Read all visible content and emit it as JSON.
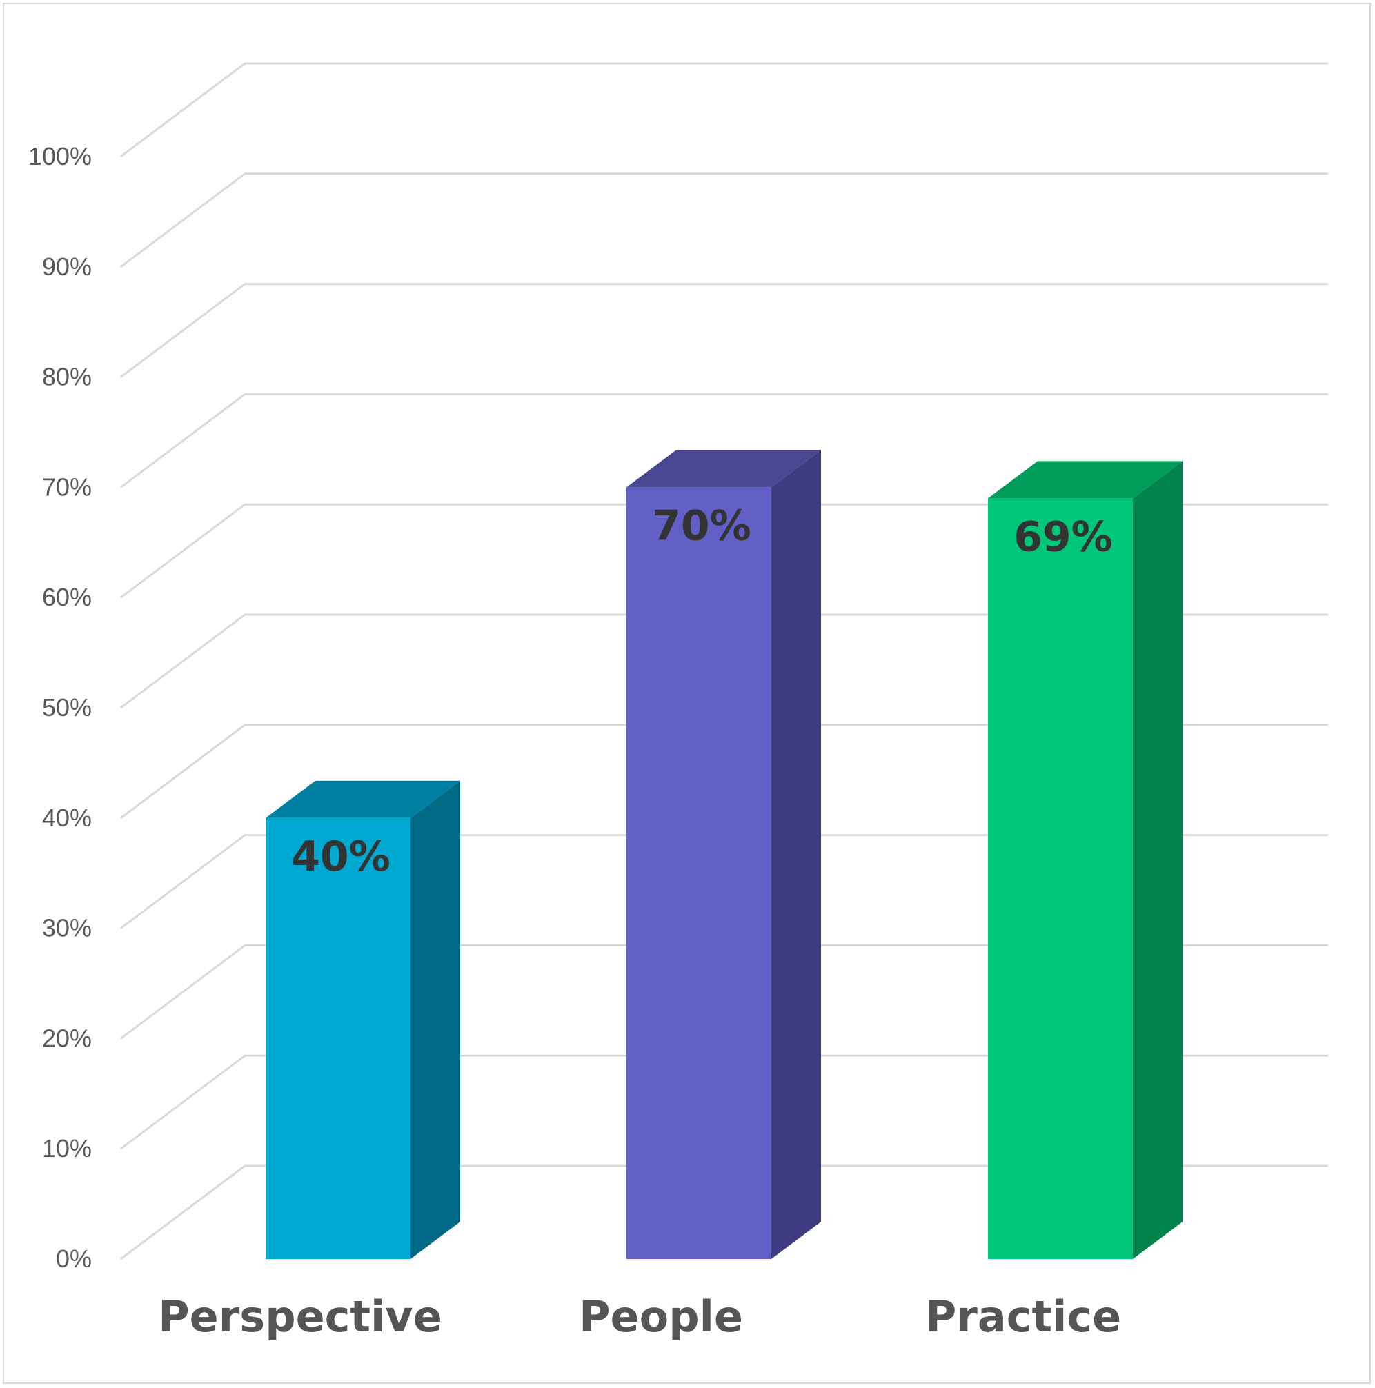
{
  "chart_data": {
    "type": "bar",
    "categories": [
      "Perspective",
      "People",
      "Practice"
    ],
    "values": [
      40,
      70,
      69
    ],
    "data_labels": [
      "40%",
      "70%",
      "69%"
    ],
    "y_ticks": [
      "0%",
      "10%",
      "20%",
      "30%",
      "40%",
      "50%",
      "60%",
      "70%",
      "80%",
      "90%",
      "100%"
    ],
    "ylim": [
      0,
      100
    ],
    "grid": true,
    "legend": "none",
    "style": "3d-column",
    "colors": [
      {
        "front": "#00a9d1",
        "side": "#006a86",
        "top": "#007fa3"
      },
      {
        "front": "#625fc6",
        "side": "#3f3b80",
        "top": "#4a4793"
      },
      {
        "front": "#00c878",
        "side": "#00844c",
        "top": "#009c5a"
      }
    ],
    "gridline_color": "#d9d9d9",
    "title": ""
  }
}
